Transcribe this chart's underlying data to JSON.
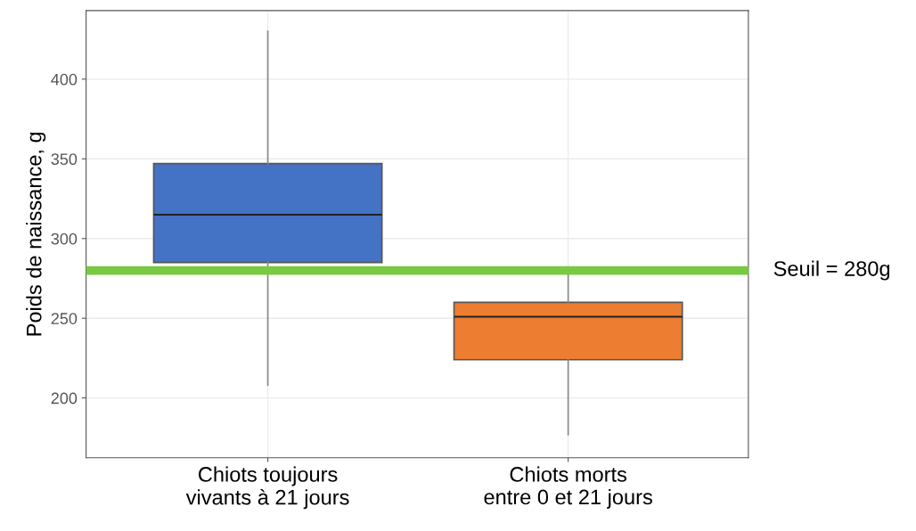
{
  "chart_data": {
    "type": "box",
    "ylabel": "Poids de naissance, g",
    "categories": [
      "Chiots toujours\nvivants à 21 jours",
      "Chiots morts\nentre 0 et 21 jours"
    ],
    "series": [
      {
        "colors": [
          "#4472c4",
          "#ed7d31"
        ],
        "boxes": [
          {
            "low": 208,
            "q1": 285,
            "median": 315,
            "q3": 347,
            "high": 430
          },
          {
            "low": 177,
            "q1": 224,
            "median": 251,
            "q3": 260,
            "high": 279
          }
        ]
      }
    ],
    "ylim": [
      162.5,
      443
    ],
    "yticks": [
      200,
      250,
      300,
      350,
      400
    ],
    "grid": true,
    "ref_lines": [
      {
        "axis": "y",
        "value": 280,
        "label": "Seuil = 280g",
        "color": "#7ac943"
      }
    ]
  }
}
